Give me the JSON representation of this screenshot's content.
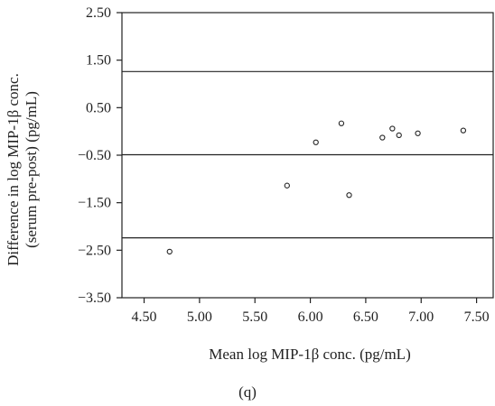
{
  "panel_label": "(q)",
  "chart_data": {
    "type": "scatter",
    "title": "",
    "xlabel": "Mean log MIP-1β conc. (pg/mL)",
    "ylabel_line1": "Difference in log MIP-1β conc.",
    "ylabel_line2": "(serum pre-post) (pg/mL)",
    "xlim": [
      4.3,
      7.65
    ],
    "ylim": [
      -3.5,
      2.5
    ],
    "xticks": [
      "4.50",
      "5.00",
      "5.50",
      "6.00",
      "6.50",
      "7.00",
      "7.50"
    ],
    "yticks": [
      "2.50",
      "1.50",
      "0.50",
      "-0.50",
      "-1.50",
      "-2.50",
      "-3.50"
    ],
    "reference_lines": [
      1.26,
      -0.49,
      -2.24
    ],
    "grid": false,
    "marker": "open-circle",
    "points": [
      {
        "x": 4.73,
        "y": -2.53
      },
      {
        "x": 5.79,
        "y": -1.14
      },
      {
        "x": 6.05,
        "y": -0.23
      },
      {
        "x": 6.28,
        "y": 0.17
      },
      {
        "x": 6.35,
        "y": -1.34
      },
      {
        "x": 6.65,
        "y": -0.13
      },
      {
        "x": 6.74,
        "y": 0.06
      },
      {
        "x": 6.8,
        "y": -0.08
      },
      {
        "x": 6.97,
        "y": -0.04
      },
      {
        "x": 7.38,
        "y": 0.02
      }
    ]
  }
}
